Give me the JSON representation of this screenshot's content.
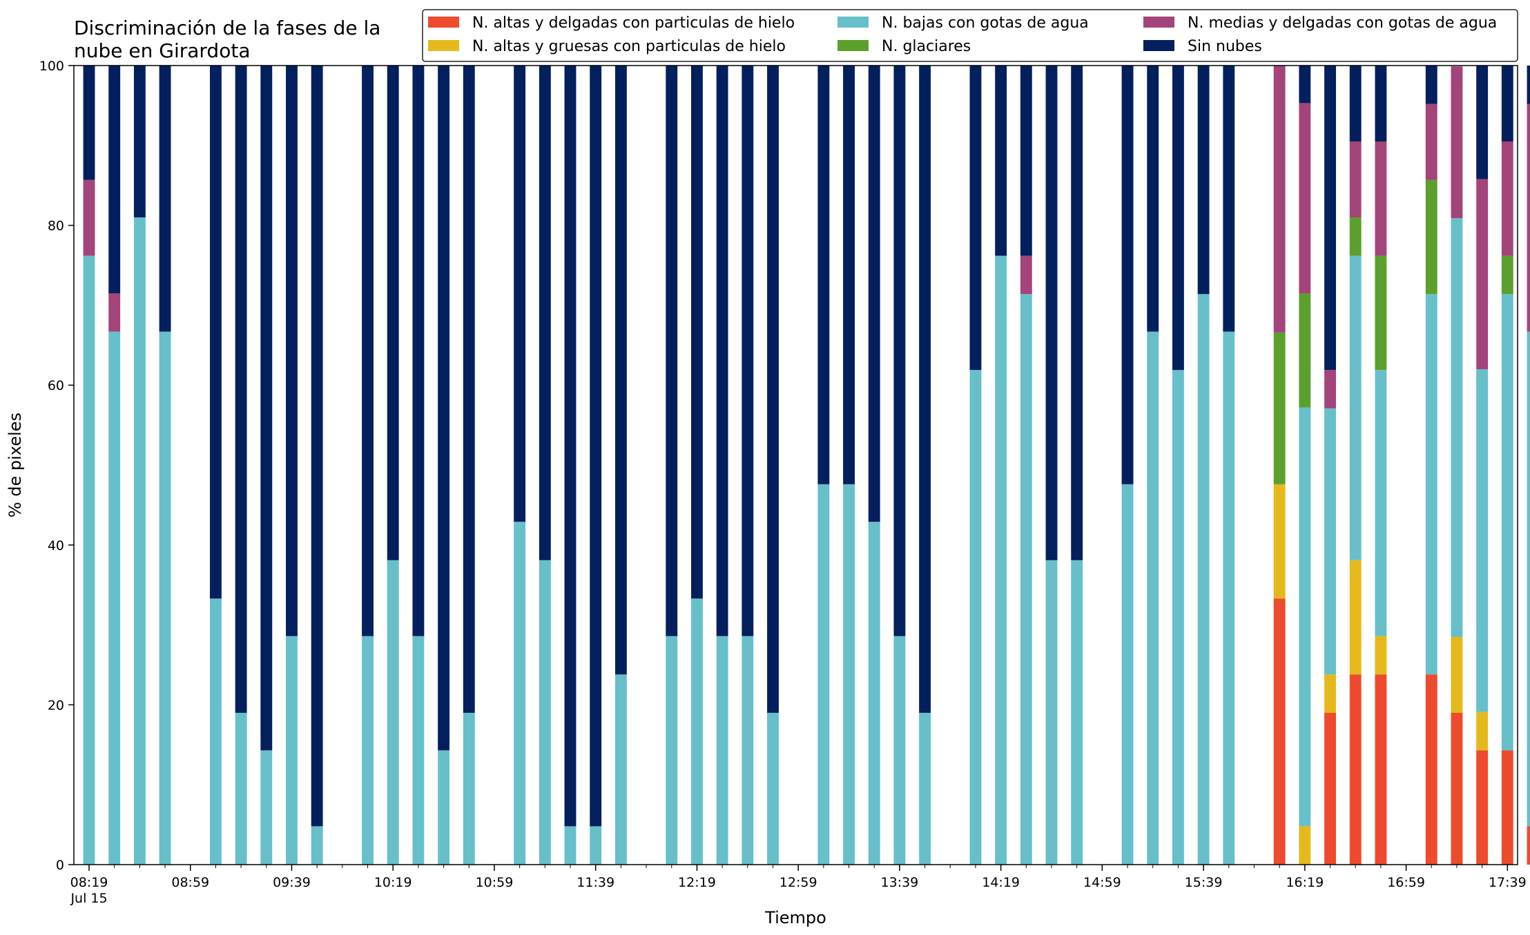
{
  "chart_data": {
    "type": "bar",
    "stacked": true,
    "title_lines": [
      "Discriminación de la fases de la",
      "nube en Girardota"
    ],
    "xlabel": "Tiempo",
    "ylabel": "% de pixeles",
    "ylim": [
      0,
      100
    ],
    "yticks": [
      0,
      20,
      40,
      60,
      80,
      100
    ],
    "x_unit": "minutes after 08:19",
    "x_range": [
      -6,
      564
    ],
    "xticks": [
      {
        "at": 0,
        "label": "08:19",
        "sublabel": "Jul 15"
      },
      {
        "at": 40,
        "label": "08:59"
      },
      {
        "at": 80,
        "label": "09:39"
      },
      {
        "at": 120,
        "label": "10:19"
      },
      {
        "at": 160,
        "label": "10:59"
      },
      {
        "at": 200,
        "label": "11:39"
      },
      {
        "at": 240,
        "label": "12:19"
      },
      {
        "at": 280,
        "label": "12:59"
      },
      {
        "at": 320,
        "label": "13:39"
      },
      {
        "at": 360,
        "label": "14:19"
      },
      {
        "at": 400,
        "label": "14:59"
      },
      {
        "at": 440,
        "label": "15:39"
      },
      {
        "at": 480,
        "label": "16:19"
      },
      {
        "at": 520,
        "label": "16:59"
      },
      {
        "at": 560,
        "label": "17:39"
      }
    ],
    "minor_tick_step": 10,
    "bar_width": 4.6,
    "grid": false,
    "legend_position": "top-right",
    "x": [
      0,
      10,
      20,
      30,
      50,
      60,
      70,
      80,
      90,
      110,
      120,
      130,
      140,
      150,
      170,
      180,
      190,
      200,
      210,
      230,
      240,
      250,
      260,
      270,
      290,
      300,
      310,
      320,
      330,
      350,
      360,
      370,
      380,
      390,
      410,
      420,
      430,
      440,
      450,
      470,
      480,
      490,
      500,
      510,
      530,
      540,
      550,
      560,
      570
    ],
    "series": [
      {
        "name": "N. altas y delgadas con particulas de hielo",
        "color": "#ee4a2d",
        "values": [
          0,
          0,
          0,
          0,
          0,
          0,
          0,
          0,
          0,
          0,
          0,
          0,
          0,
          0,
          0,
          0,
          0,
          0,
          0,
          0,
          0,
          0,
          0,
          0,
          0,
          0,
          0,
          0,
          0,
          0,
          0,
          0,
          0,
          0,
          0,
          0,
          0,
          0,
          0,
          33.3,
          0,
          19.0,
          23.8,
          23.8,
          23.8,
          19.0,
          14.3,
          14.3,
          4.8
        ]
      },
      {
        "name": "N. altas y gruesas con particulas de hielo",
        "color": "#e5b91c",
        "values": [
          0,
          0,
          0,
          0,
          0,
          0,
          0,
          0,
          0,
          0,
          0,
          0,
          0,
          0,
          0,
          0,
          0,
          0,
          0,
          0,
          0,
          0,
          0,
          0,
          0,
          0,
          0,
          0,
          0,
          0,
          0,
          0,
          0,
          0,
          0,
          0,
          0,
          0,
          0,
          14.3,
          4.8,
          4.8,
          14.3,
          4.8,
          0,
          9.5,
          4.8,
          0,
          0
        ]
      },
      {
        "name": "N. bajas con gotas de agua",
        "color": "#67bfca",
        "values": [
          76.2,
          66.7,
          81.0,
          66.7,
          33.3,
          19.0,
          14.3,
          28.6,
          4.8,
          28.6,
          38.1,
          28.6,
          14.3,
          19.0,
          42.9,
          38.1,
          4.8,
          4.8,
          23.8,
          28.6,
          33.3,
          28.6,
          28.6,
          19.0,
          47.6,
          47.6,
          42.9,
          28.6,
          19.0,
          61.9,
          76.2,
          71.4,
          38.1,
          38.1,
          47.6,
          66.7,
          61.9,
          71.4,
          66.7,
          0,
          52.4,
          33.3,
          38.1,
          33.3,
          47.6,
          52.4,
          42.9,
          57.1,
          61.9
        ]
      },
      {
        "name": "N. glaciares",
        "color": "#5c9f2c",
        "values": [
          0,
          0,
          0,
          0,
          0,
          0,
          0,
          0,
          0,
          0,
          0,
          0,
          0,
          0,
          0,
          0,
          0,
          0,
          0,
          0,
          0,
          0,
          0,
          0,
          0,
          0,
          0,
          0,
          0,
          0,
          0,
          0,
          0,
          0,
          0,
          0,
          0,
          0,
          0,
          19.0,
          14.3,
          0,
          4.8,
          14.3,
          14.3,
          0,
          0,
          4.8,
          0
        ]
      },
      {
        "name": "N. medias y delgadas con gotas de agua",
        "color": "#a3447a",
        "values": [
          9.5,
          4.8,
          0,
          0,
          0,
          0,
          0,
          0,
          0,
          0,
          0,
          0,
          0,
          0,
          0,
          0,
          0,
          0,
          0,
          0,
          0,
          0,
          0,
          0,
          0,
          0,
          0,
          0,
          0,
          0,
          0,
          4.8,
          0,
          0,
          0,
          0,
          0,
          0,
          0,
          33.4,
          23.8,
          4.8,
          9.5,
          14.3,
          9.5,
          19.0,
          23.8,
          14.3,
          28.5
        ]
      },
      {
        "name": "Sin nubes",
        "color": "#031f5e",
        "values": [
          14.3,
          28.5,
          19.0,
          33.3,
          66.7,
          81.0,
          85.7,
          71.4,
          95.2,
          71.4,
          61.9,
          71.4,
          85.7,
          81.0,
          57.1,
          61.9,
          95.2,
          95.2,
          76.2,
          71.4,
          66.7,
          71.4,
          71.4,
          81.0,
          52.4,
          52.4,
          57.1,
          71.4,
          81.0,
          38.1,
          23.8,
          23.8,
          61.9,
          61.9,
          52.4,
          33.3,
          38.1,
          28.6,
          33.3,
          0,
          4.7,
          38.1,
          9.5,
          9.5,
          4.8,
          0,
          14.2,
          9.5,
          4.8
        ]
      }
    ]
  }
}
